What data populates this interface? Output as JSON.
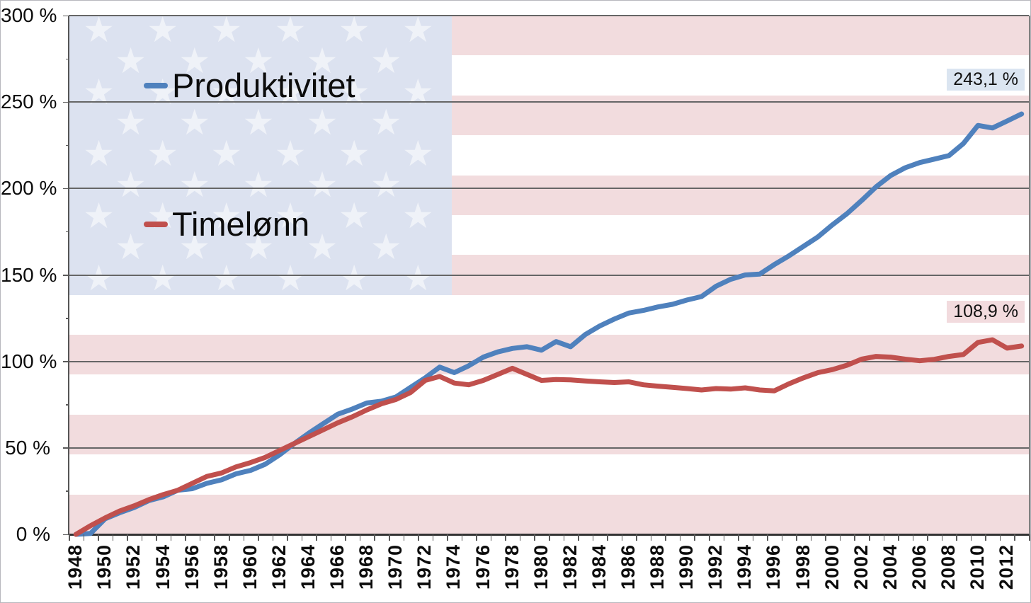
{
  "chart": {
    "legend": [
      {
        "label": "Produktivitet",
        "color": "#4f81bd"
      },
      {
        "label": "Timelønn",
        "color": "#c0504d"
      }
    ],
    "end_labels": [
      {
        "text": "243,1 %",
        "bg": "#dbe5f1",
        "series": "Produktivitet"
      },
      {
        "text": "108,9 %",
        "bg": "#f2dbde",
        "series": "Timelønn"
      }
    ],
    "y_axis": {
      "tick_labels": [
        "300 %",
        "250 %",
        "200 %",
        "150 %",
        "100 %",
        "50 %",
        "0 %"
      ]
    },
    "x_axis": {
      "tick_labels": [
        "1948",
        "1950",
        "1952",
        "1954",
        "1956",
        "1958",
        "1960",
        "1962",
        "1964",
        "1966",
        "1968",
        "1970",
        "1972",
        "1974",
        "1976",
        "1978",
        "1980",
        "1982",
        "1984",
        "1986",
        "1988",
        "1990",
        "1992",
        "1994",
        "1996",
        "1998",
        "2000",
        "2002",
        "2004",
        "2006",
        "2008",
        "2010",
        "2012"
      ]
    },
    "flag": {
      "stripe_red": "#f2dcde",
      "stripe_white": "#ffffff",
      "canton_blue": "#dce2f0",
      "star_color": "rgba(255,255,255,0.55)",
      "star_glyph": "★"
    }
  },
  "chart_data": {
    "type": "line",
    "title": "",
    "xlabel": "",
    "ylabel": "",
    "ylim": [
      0,
      300
    ],
    "y_tick_step_pct": 50,
    "grid": "horizontal",
    "legend_position": "overlay top-left",
    "background_decoration": "US flag: blue canton with 50 stars top-left, 13 red/white stripes",
    "x": [
      1948,
      1949,
      1950,
      1951,
      1952,
      1953,
      1954,
      1955,
      1956,
      1957,
      1958,
      1959,
      1960,
      1961,
      1962,
      1963,
      1964,
      1965,
      1966,
      1967,
      1968,
      1969,
      1970,
      1971,
      1972,
      1973,
      1974,
      1975,
      1976,
      1977,
      1978,
      1979,
      1980,
      1981,
      1982,
      1983,
      1984,
      1985,
      1986,
      1987,
      1988,
      1989,
      1990,
      1991,
      1992,
      1993,
      1994,
      1995,
      1996,
      1997,
      1998,
      1999,
      2000,
      2001,
      2002,
      2003,
      2004,
      2005,
      2006,
      2007,
      2008,
      2009,
      2010,
      2011,
      2012,
      2013
    ],
    "series": [
      {
        "name": "Produktivitet",
        "color": "#4f81bd",
        "end_value_label": "243,1 %",
        "values": [
          0.0,
          0.5,
          9.0,
          12.5,
          15.5,
          19.5,
          21.7,
          25.5,
          26.4,
          29.5,
          31.5,
          35.0,
          37.0,
          40.5,
          46.0,
          52.5,
          58.5,
          64.0,
          69.5,
          72.5,
          76.0,
          77.0,
          79.5,
          85.0,
          90.5,
          96.7,
          93.5,
          97.5,
          102.5,
          105.5,
          107.5,
          108.5,
          106.5,
          111.5,
          108.5,
          115.5,
          120.5,
          124.5,
          128.0,
          129.5,
          131.5,
          133.0,
          135.5,
          137.5,
          143.5,
          147.5,
          150.0,
          150.5,
          156.0,
          161.0,
          166.5,
          172.0,
          179.0,
          185.5,
          193.0,
          201.0,
          207.5,
          212.0,
          215.0,
          217.0,
          219.0,
          226.0,
          236.5,
          235.0,
          239.0,
          243.1
        ]
      },
      {
        "name": "Timelønn",
        "color": "#c0504d",
        "end_value_label": "108,9 %",
        "values": [
          0.0,
          5.0,
          9.5,
          13.5,
          16.5,
          20.0,
          23.0,
          25.5,
          29.5,
          33.5,
          35.5,
          39.0,
          41.5,
          44.5,
          48.5,
          52.5,
          56.5,
          60.5,
          64.5,
          68.0,
          72.0,
          75.5,
          78.0,
          82.0,
          89.0,
          91.3,
          87.5,
          86.5,
          89.0,
          92.5,
          96.0,
          92.5,
          89.0,
          89.5,
          89.3,
          88.7,
          88.2,
          87.8,
          88.2,
          86.5,
          85.7,
          85.0,
          84.3,
          83.5,
          84.3,
          84.0,
          84.7,
          83.5,
          83.0,
          87.0,
          90.5,
          93.5,
          95.3,
          97.8,
          101.3,
          102.9,
          102.5,
          101.3,
          100.4,
          101.2,
          102.9,
          104.0,
          111.0,
          112.5,
          107.7,
          108.9
        ]
      }
    ]
  }
}
